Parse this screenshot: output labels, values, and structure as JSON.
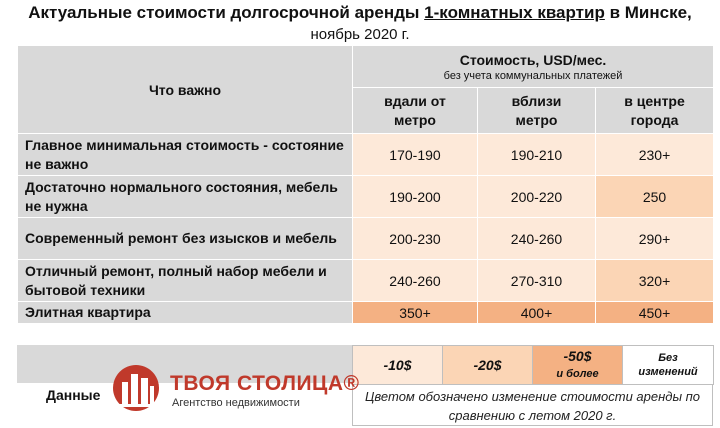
{
  "title": {
    "prefix": "Актуальные стоимости долгосрочной аренды ",
    "highlight": "1-комнатных квартир",
    "suffix": " в Минске,",
    "subtitle": "ноябрь 2020 г."
  },
  "table": {
    "col_what": "Что важно",
    "col_cost": "Стоимость, USD/мес.",
    "col_cost_note": "без учета коммунальных платежей",
    "subcols": [
      "вдали от метро",
      "вблизи метро",
      "в центре города"
    ],
    "rows": [
      {
        "label": "Главное минимальная стоимость - состояние не важно",
        "values": [
          "170-190",
          "190-210",
          "230+"
        ],
        "levels": [
          "c1",
          "c1",
          "c1"
        ]
      },
      {
        "label": "Достаточно нормального состояния, мебель не нужна",
        "values": [
          "190-200",
          "200-220",
          "250"
        ],
        "levels": [
          "c1",
          "c1",
          "c2"
        ]
      },
      {
        "label": "Современный ремонт без изысков и мебель",
        "values": [
          "200-230",
          "240-260",
          "290+"
        ],
        "levels": [
          "c1",
          "c1",
          "c1"
        ]
      },
      {
        "label": "Отличный ремонт, полный набор мебели и бытовой техники",
        "values": [
          "240-260",
          "270-310",
          "320+"
        ],
        "levels": [
          "c1",
          "c1",
          "c2"
        ]
      },
      {
        "label": "Элитная квартира",
        "values": [
          "350+",
          "400+",
          "450+"
        ],
        "levels": [
          "c3",
          "c3",
          "c3"
        ]
      }
    ]
  },
  "legend": {
    "items": [
      "-10$",
      "-20$",
      "-50$",
      "и более",
      "Без изменений"
    ],
    "colors": {
      "c1": "#fde9d9",
      "c2": "#fbd5b5",
      "c3": "#f4b183"
    },
    "note": "Цветом обозначено изменение стоимости аренды по сравнению с летом 2020 г."
  },
  "footer": {
    "data_label": "Данные",
    "logo_name": "ТВОЯ СТОЛИЦА®",
    "logo_sub": "Агентство недвижимости",
    "logo_icon": "building-logo-icon"
  }
}
